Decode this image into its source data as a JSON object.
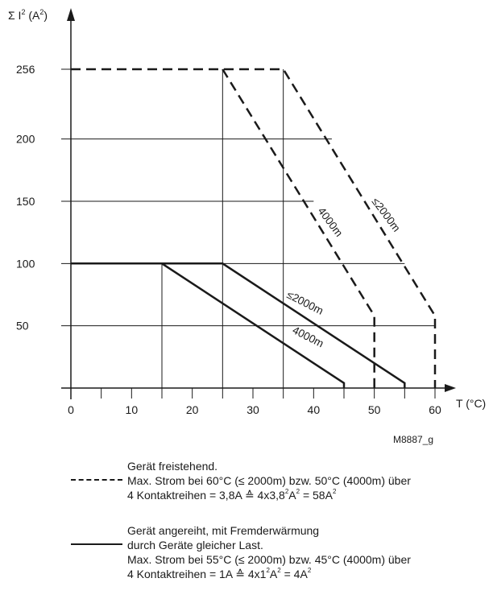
{
  "chart_data": {
    "type": "line",
    "x_axis": {
      "label": "T (°C)",
      "range": [
        0,
        60
      ],
      "major_ticks": [
        0,
        10,
        20,
        30,
        40,
        50,
        60
      ],
      "major_tick_labels": [
        "0",
        "10",
        "20",
        "30",
        "40",
        "50",
        "60"
      ],
      "minor_ticks": [
        5,
        15,
        25,
        35,
        45,
        55
      ]
    },
    "y_axis": {
      "label_prefix": "Σ I",
      "label_unit": "(A",
      "label_suffix": ")",
      "label_sup": "2",
      "range": [
        0,
        256
      ],
      "ticks": [
        50,
        100,
        150,
        200,
        256
      ],
      "tick_labels": [
        "50",
        "100",
        "150",
        "200",
        "256"
      ]
    },
    "grid": true,
    "series": [
      {
        "group": "freistehend",
        "style": "dashed",
        "label": "≤2000m",
        "points": [
          [
            0,
            256
          ],
          [
            35,
            256
          ],
          [
            60,
            58
          ],
          [
            60,
            0
          ]
        ]
      },
      {
        "group": "freistehend",
        "style": "dashed",
        "label": "4000m",
        "points": [
          [
            25,
            256
          ],
          [
            50,
            58
          ],
          [
            50,
            0
          ]
        ]
      },
      {
        "group": "angereiht",
        "style": "solid",
        "label": "≤2000m",
        "points": [
          [
            0,
            100
          ],
          [
            25,
            100
          ],
          [
            55,
            4
          ],
          [
            55,
            0
          ]
        ]
      },
      {
        "group": "angereiht",
        "style": "solid",
        "label": "4000m",
        "points": [
          [
            15,
            100
          ],
          [
            45,
            4
          ],
          [
            45,
            0
          ]
        ]
      }
    ],
    "figure_id": "M8887_g"
  },
  "legend": {
    "dashed": {
      "line1": "Gerät freistehend.",
      "line2": "Max. Strom bei 60°C (≤ 2000m) bzw. 50°C (4000m) über",
      "line3_a": "4 Kontaktreihen = 3,8A ≙ 4x3,8",
      "line3_b": "A",
      "line3_c": " = 58A",
      "sup": "2"
    },
    "solid": {
      "line1": "Gerät angereiht, mit Fremderwärmung",
      "line2": "durch Geräte gleicher Last.",
      "line3": "Max. Strom bei 55°C (≤ 2000m) bzw. 45°C (4000m) über",
      "line4_a": "4 Kontaktreihen = 1A ≙ 4x1",
      "line4_b": "A",
      "line4_c": " = 4A",
      "sup": "2"
    }
  }
}
